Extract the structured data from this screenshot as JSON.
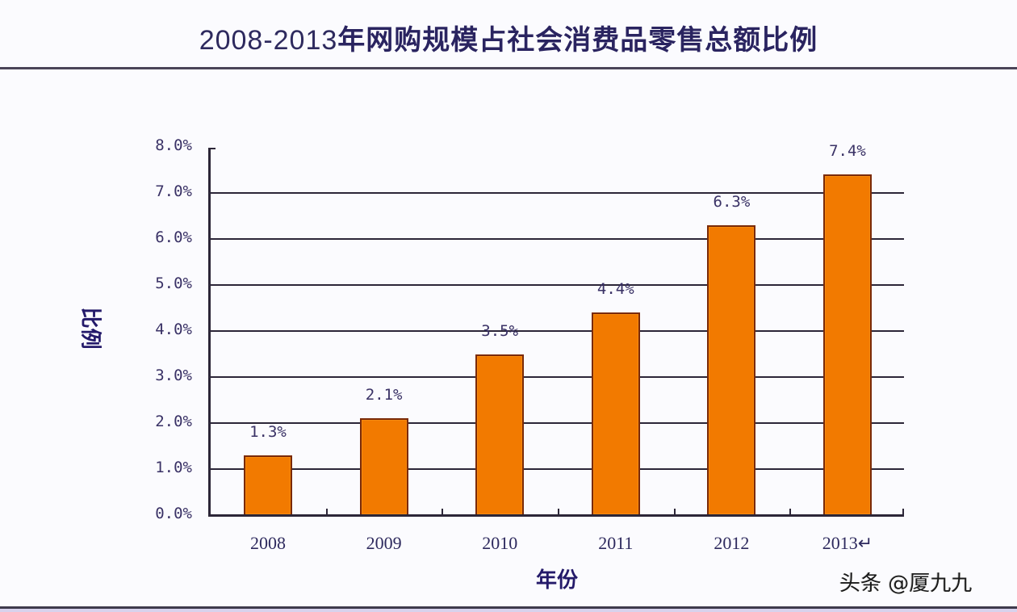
{
  "title": {
    "years": "2008-2013",
    "text": "年网购规模占社会消费品零售总额比例"
  },
  "colors": {
    "bar_fill": "#f27a00",
    "bar_border": "#7a2a08",
    "text": "#2e2a5e",
    "axis": "#2c2638"
  },
  "watermark": "头条 @厦九九",
  "chart_data": {
    "type": "bar",
    "title": "2008-2013年网购规模占社会消费品零售总额比例",
    "xlabel": "年份",
    "ylabel": "比例",
    "categories": [
      "2008",
      "2009",
      "2010",
      "2011",
      "2012",
      "2013↵"
    ],
    "values": [
      1.3,
      2.1,
      3.5,
      4.4,
      6.3,
      7.4
    ],
    "value_labels": [
      "1.3%",
      "2.1%",
      "3.5%",
      "4.4%",
      "6.3%",
      "7.4%"
    ],
    "unit": "%",
    "ylim": [
      0,
      8
    ],
    "yticks": [
      "0.0%",
      "1.0%",
      "2.0%",
      "3.0%",
      "4.0%",
      "5.0%",
      "6.0%",
      "7.0%",
      "8.0%"
    ],
    "grid": true,
    "legend": null
  }
}
